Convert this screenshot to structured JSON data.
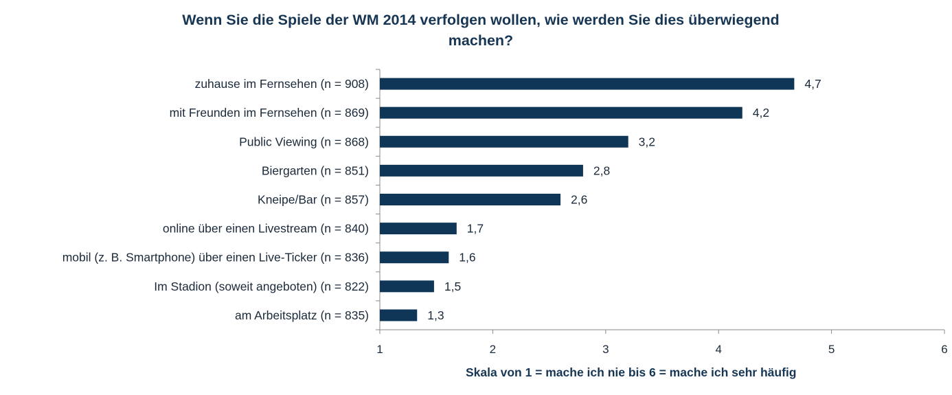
{
  "chart_data": {
    "type": "bar",
    "orientation": "horizontal",
    "title_line1": "Wenn Sie die Spiele der WM 2014 verfolgen wollen, wie werden Sie dies überwiegend",
    "title_line2": "machen?",
    "xlabel": "Skala von 1 = mache ich nie bis 6 = mache ich sehr häufig",
    "ylabel": "",
    "xlim": [
      1,
      6
    ],
    "xticks": [
      "1",
      "2",
      "3",
      "4",
      "5",
      "6"
    ],
    "grid": false,
    "legend": "none",
    "bar_color": "#0f3657",
    "categories": [
      "zuhause im Fernsehen (n = 908)",
      "mit Freunden im Fernsehen (n = 869)",
      "Public Viewing (n = 868)",
      "Biergarten (n = 851)",
      "Kneipe/Bar (n = 857)",
      "online über einen Livestream (n = 840)",
      "mobil (z. B. Smartphone) über einen Live-Ticker (n = 836)",
      "Im Stadion (soweit angeboten) (n = 822)",
      "am Arbeitsplatz (n = 835)"
    ],
    "values": [
      4.67,
      4.21,
      3.2,
      2.8,
      2.6,
      1.68,
      1.61,
      1.48,
      1.33
    ],
    "value_labels": [
      "4,7",
      "4,2",
      "3,2",
      "2,8",
      "2,6",
      "1,7",
      "1,6",
      "1,5",
      "1,3"
    ]
  }
}
